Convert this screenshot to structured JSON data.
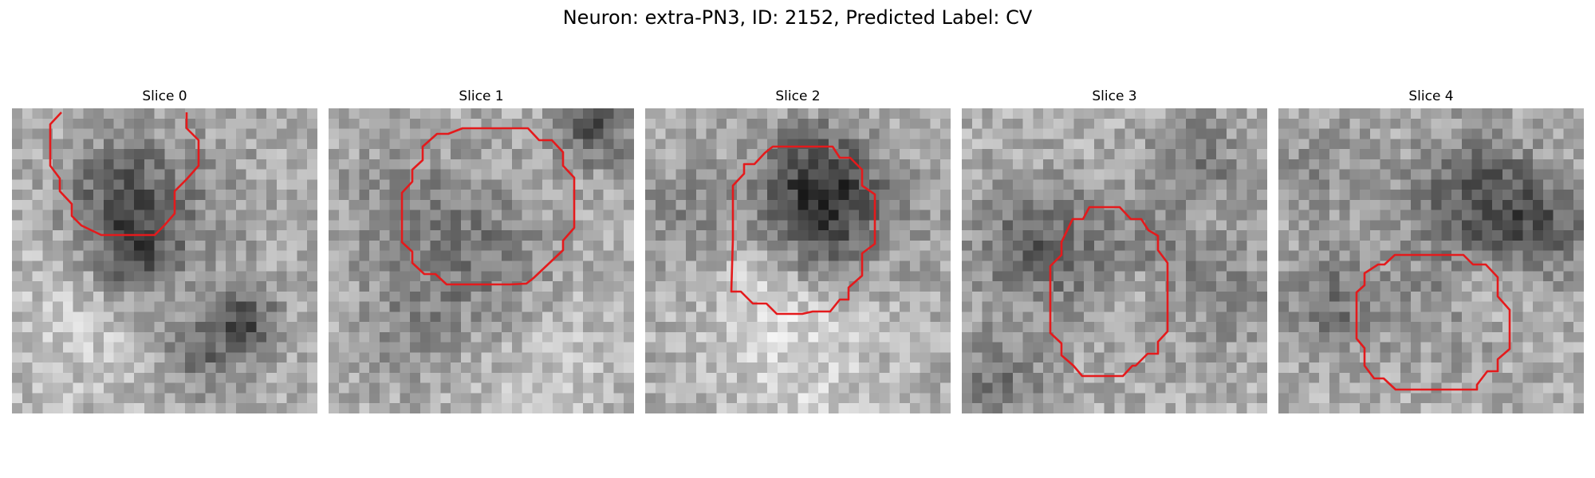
{
  "title": "Neuron: extra-PN3, ID: 2152, Predicted Label: CV",
  "contour_color": "#e41a1c",
  "panels": [
    {
      "label": "Slice 0",
      "image": "grayscale-em-patch"
    },
    {
      "label": "Slice 1",
      "image": "grayscale-em-patch"
    },
    {
      "label": "Slice 2",
      "image": "grayscale-em-patch"
    },
    {
      "label": "Slice 3",
      "image": "grayscale-em-patch"
    },
    {
      "label": "Slice 4",
      "image": "grayscale-em-patch"
    }
  ]
}
